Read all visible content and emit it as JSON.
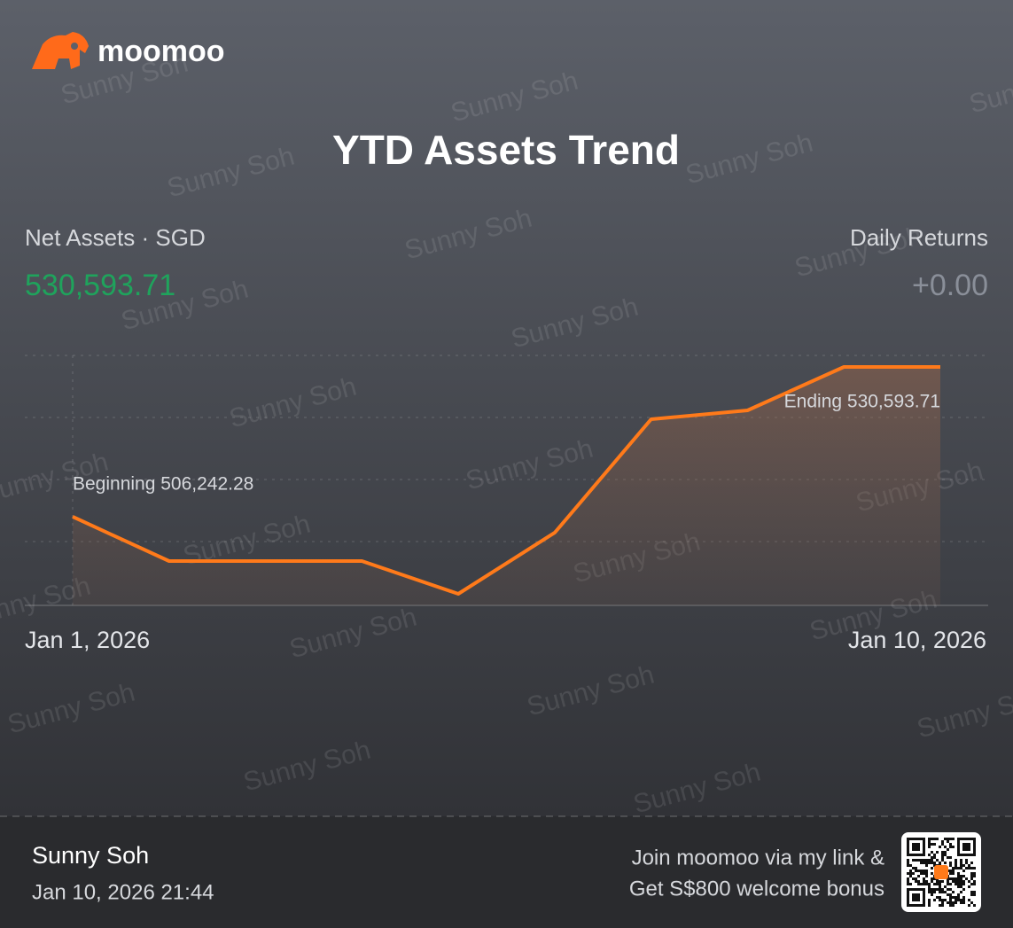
{
  "brand": "moomoo",
  "watermark": "Sunny Soh",
  "summary": {
    "net_assets_label": "Net Assets · SGD",
    "net_assets_value": "530,593.71",
    "daily_returns_label": "Daily Returns",
    "daily_returns_value": "+0.00"
  },
  "chart_data": {
    "type": "line",
    "title": "YTD Assets Trend",
    "categories": [
      "Jan 1, 2026",
      null,
      null,
      null,
      null,
      null,
      null,
      null,
      null,
      "Jan 10, 2026"
    ],
    "values": [
      506242.28,
      499037,
      499037,
      499037,
      493705,
      503648,
      522093,
      523534,
      530593.71,
      530593.71
    ],
    "color": "#ff7a1a",
    "annotations": [
      "Beginning 506,242.28",
      "Ending 530,593.71"
    ]
  },
  "footer": {
    "name": "Sunny Soh",
    "timestamp": "Jan 10, 2026 21:44",
    "promo_line1": "Join moomoo via my link &",
    "promo_line2": "Get S$800 welcome bonus"
  }
}
